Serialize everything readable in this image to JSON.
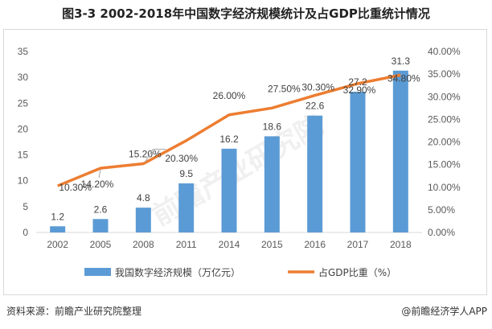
{
  "title": "图3-3 2002-2018年中国数字经济规模统计及占GDP比重统计情况",
  "footer": {
    "source": "资料来源：前瞻产业研究院整理",
    "credit": "@前瞻经济学人APP"
  },
  "watermark": "前瞻产业研究院",
  "colors": {
    "bar": "#5b9bd5",
    "line": "#ed7d31",
    "axis": "#d9d9d9"
  },
  "chart_data": {
    "type": "bar",
    "categories": [
      "2002",
      "2005",
      "2008",
      "2011",
      "2014",
      "2015",
      "2016",
      "2017",
      "2018"
    ],
    "series": [
      {
        "name": "我国数字经济规模（万亿元）",
        "type": "bar",
        "axis": "left",
        "values": [
          1.2,
          2.6,
          4.8,
          9.5,
          16.2,
          18.6,
          22.6,
          27.2,
          31.3
        ],
        "labels": [
          "1.2",
          "2.6",
          "4.8",
          "9.5",
          "16.2",
          "18.6",
          "22.6",
          "27.2",
          "31.3"
        ]
      },
      {
        "name": "占GDP比重（%）",
        "type": "line",
        "axis": "right",
        "values": [
          10.3,
          14.2,
          15.2,
          20.3,
          26.0,
          27.5,
          30.3,
          32.9,
          34.8
        ],
        "labels": [
          "10.30%",
          "14.20%",
          "15.20%",
          "20.30%",
          "26.00%",
          "27.50%",
          "30.30%",
          "32.90%",
          "34.80%"
        ]
      }
    ],
    "ylim_left": [
      0,
      35
    ],
    "yticks_left": [
      "0",
      "5",
      "10",
      "15",
      "20",
      "25",
      "30",
      "35"
    ],
    "ylim_right": [
      0,
      40
    ],
    "yticks_right": [
      "0.00%",
      "5.00%",
      "10.00%",
      "15.00%",
      "20.00%",
      "25.00%",
      "30.00%",
      "35.00%",
      "40.00%"
    ],
    "grid": false,
    "legend_position": "bottom"
  }
}
